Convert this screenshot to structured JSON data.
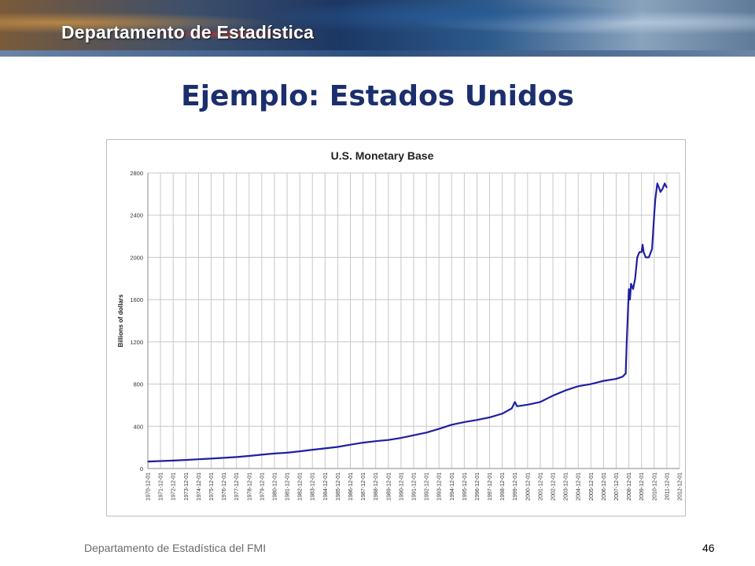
{
  "header": {
    "title": "Departamento de Estadística"
  },
  "slide": {
    "title": "Ejemplo: Estados Unidos"
  },
  "footer": {
    "source": "Departamento de Estadística del FMI",
    "page": "46"
  },
  "colors": {
    "line": "#1f1fa3",
    "grid": "#c8c8c8",
    "title": "#1b2f6e"
  },
  "chart_data": {
    "type": "line",
    "title": "U.S. Monetary Base",
    "xlabel": "",
    "ylabel": "Billions of dollars",
    "ylim": [
      0,
      2800
    ],
    "yticks": [
      0,
      400,
      800,
      1200,
      1600,
      2000,
      2400,
      2800
    ],
    "grid": true,
    "legend": "none",
    "x_tick_labels": [
      "1970-12-01",
      "1971-12-01",
      "1972-12-01",
      "1973-12-01",
      "1974-12-01",
      "1975-12-01",
      "1976-12-01",
      "1977-12-01",
      "1978-12-01",
      "1979-12-01",
      "1980-12-01",
      "1981-12-01",
      "1982-12-01",
      "1983-12-01",
      "1984-12-01",
      "1985-12-01",
      "1986-12-01",
      "1987-12-01",
      "1988-12-01",
      "1989-12-01",
      "1990-12-01",
      "1991-12-01",
      "1992-12-01",
      "1993-12-01",
      "1994-12-01",
      "1995-12-01",
      "1996-12-01",
      "1997-12-01",
      "1998-12-01",
      "1999-12-01",
      "2000-12-01",
      "2001-12-01",
      "2002-12-01",
      "2003-12-01",
      "2004-12-01",
      "2005-12-01",
      "2006-12-01",
      "2007-12-01",
      "2008-12-01",
      "2009-12-01",
      "2010-12-01",
      "2011-12-01",
      "2012-12-01"
    ],
    "series": [
      {
        "x": [
          "1970-12-01",
          "1971-12-01",
          "1972-12-01",
          "1973-12-01",
          "1974-12-01",
          "1975-12-01",
          "1976-12-01",
          "1977-12-01",
          "1978-12-01",
          "1979-12-01",
          "1980-12-01",
          "1981-12-01",
          "1982-12-01",
          "1983-12-01",
          "1984-12-01",
          "1985-12-01",
          "1986-12-01",
          "1987-12-01",
          "1988-12-01",
          "1989-12-01",
          "1990-12-01",
          "1991-12-01",
          "1992-12-01",
          "1993-12-01",
          "1994-12-01",
          "1995-12-01",
          "1996-12-01",
          "1997-12-01",
          "1998-12-01",
          "1999-09-01",
          "1999-12-01",
          "2000-02-01",
          "2000-12-01",
          "2001-12-01",
          "2002-12-01",
          "2003-12-01",
          "2004-12-01",
          "2005-12-01",
          "2006-12-01",
          "2007-12-01",
          "2008-06-01",
          "2008-09-01",
          "2008-10-01",
          "2008-12-01",
          "2009-01-01",
          "2009-02-01",
          "2009-04-01",
          "2009-06-01",
          "2009-08-01",
          "2009-10-01",
          "2009-12-01",
          "2010-01-01",
          "2010-02-01",
          "2010-04-01",
          "2010-07-01",
          "2010-10-01",
          "2010-12-01",
          "2011-01-01",
          "2011-03-01",
          "2011-05-01",
          "2011-06-01",
          "2011-08-01",
          "2011-10-01",
          "2011-12-01"
        ],
        "values": [
          66,
          71,
          75,
          81,
          88,
          94,
          101,
          109,
          119,
          131,
          142,
          150,
          163,
          178,
          191,
          205,
          226,
          245,
          259,
          270,
          290,
          315,
          340,
          375,
          415,
          440,
          460,
          485,
          520,
          570,
          630,
          590,
          605,
          630,
          690,
          740,
          780,
          800,
          830,
          850,
          870,
          900,
          1200,
          1700,
          1600,
          1750,
          1700,
          1800,
          2000,
          2050,
          2050,
          2120,
          2050,
          2000,
          2000,
          2080,
          2400,
          2550,
          2700,
          2650,
          2620,
          2650,
          2700,
          2660
        ]
      }
    ]
  }
}
